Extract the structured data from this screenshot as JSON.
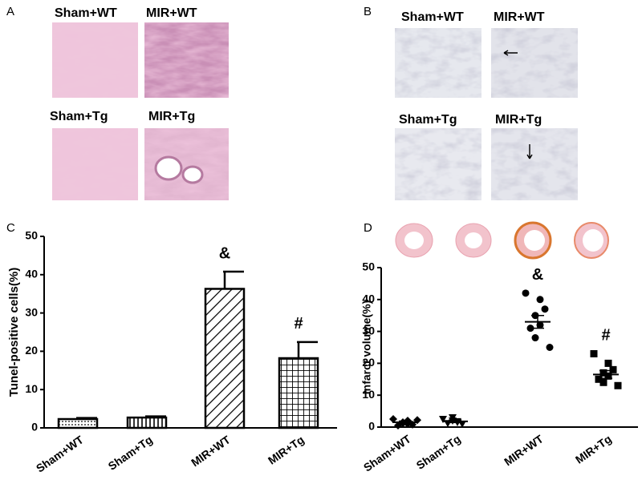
{
  "panels": {
    "A": {
      "letter": "A",
      "labels": [
        "Sham+WT",
        "MIR+WT",
        "Sham+Tg",
        "MIR+Tg"
      ]
    },
    "B": {
      "letter": "B",
      "labels": [
        "Sham+WT",
        "MIR+WT",
        "Sham+Tg",
        "MIR+Tg"
      ]
    },
    "C": {
      "letter": "C"
    },
    "D": {
      "letter": "D"
    }
  },
  "chart_data": [
    {
      "type": "bar",
      "y_label": "Tunel-positive cells(%)",
      "categories": [
        "Sham+WT",
        "Sham+Tg",
        "MIR+WT",
        "MIR+Tg"
      ],
      "values": [
        2.3,
        2.7,
        36.3,
        18.2
      ],
      "errors": [
        0.3,
        0.3,
        4.5,
        4.2
      ],
      "annotations": [
        null,
        null,
        "&",
        "#"
      ],
      "ylim": [
        0,
        50
      ],
      "yticks": [
        0,
        10,
        20,
        30,
        40,
        50
      ],
      "color": "#000000"
    },
    {
      "type": "dot",
      "y_label": "Infarct volume(%)",
      "categories": [
        "Sham+WT",
        "Sham+Tg",
        "MIR+WT",
        "MIR+Tg"
      ],
      "points": [
        [
          2.5,
          1.0,
          0.8,
          1.5,
          2.0,
          0.5,
          1.2,
          2.2
        ],
        [
          2.5,
          1.5,
          1.0,
          2.0,
          1.8,
          1.2,
          3.0
        ],
        [
          42,
          40,
          37,
          35,
          32,
          31,
          28,
          25
        ],
        [
          23,
          20,
          18,
          17,
          16,
          15,
          14,
          13
        ]
      ],
      "means": [
        1.5,
        1.8,
        33,
        16.5
      ],
      "sems": [
        0.4,
        0.4,
        2,
        1.2
      ],
      "annotations": [
        null,
        null,
        "&",
        "#"
      ],
      "ylim": [
        0,
        50
      ],
      "yticks": [
        0,
        10,
        20,
        30,
        40,
        50
      ],
      "color": "#000000"
    }
  ]
}
